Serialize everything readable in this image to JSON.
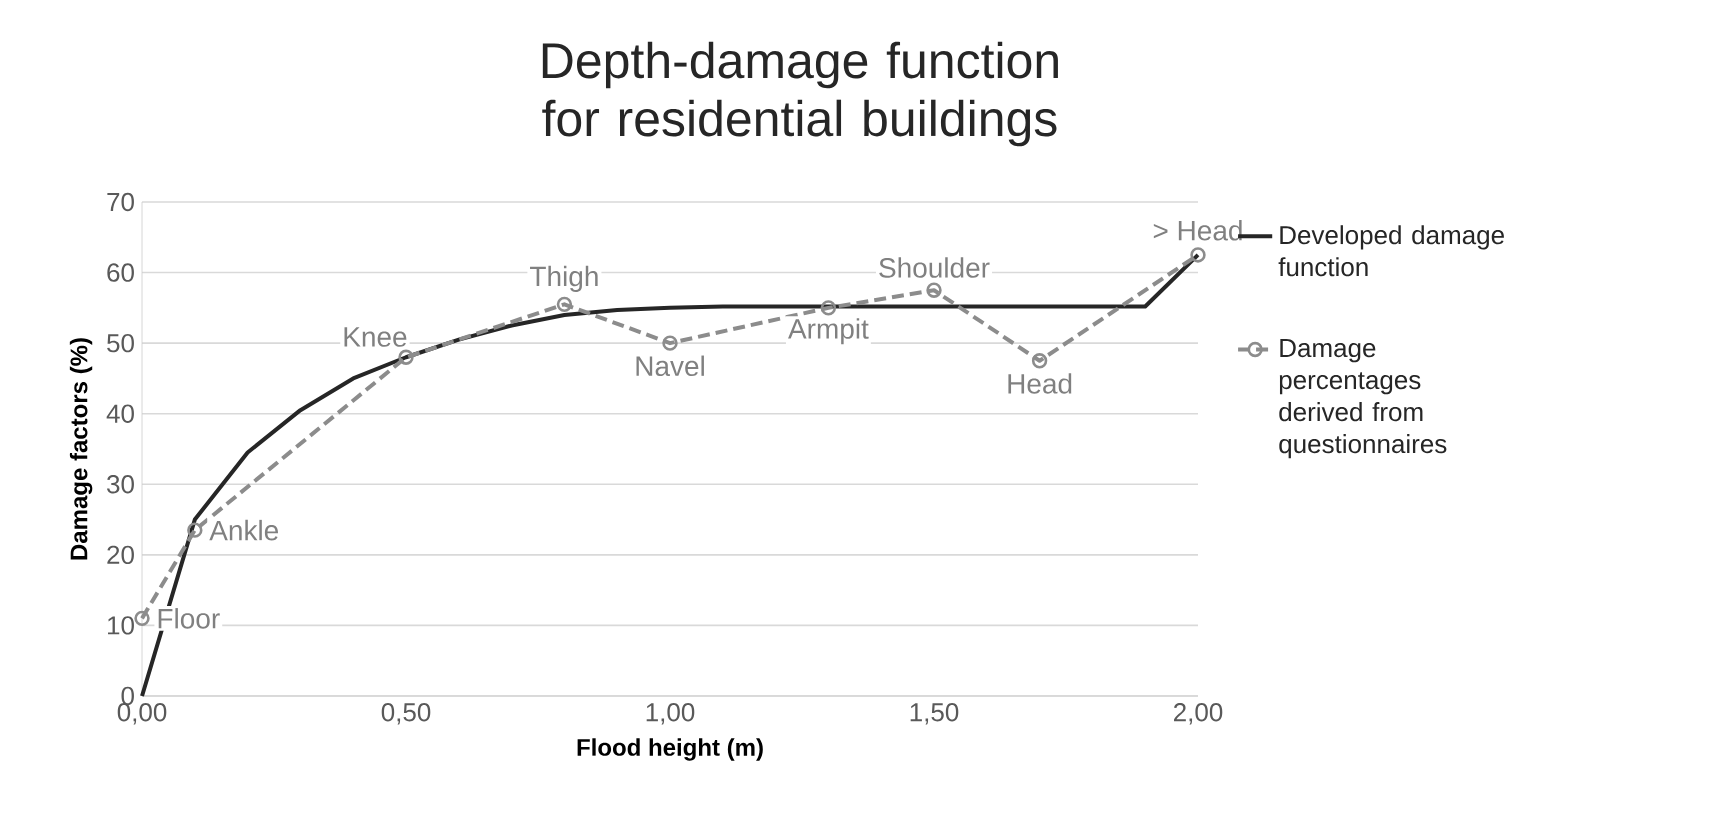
{
  "chart_data": {
    "type": "line",
    "title": "Depth-damage function for residential buildings",
    "xlabel": "Flood height (m)",
    "ylabel": "Damage factors (%)",
    "xlim": [
      0,
      2
    ],
    "xticks": [
      {
        "value": 0,
        "label": "0,00"
      },
      {
        "value": 0.5,
        "label": "0,50"
      },
      {
        "value": 1,
        "label": "1,00"
      },
      {
        "value": 1.5,
        "label": "1,50"
      },
      {
        "value": 2,
        "label": "2,00"
      }
    ],
    "ylim": [
      0,
      70
    ],
    "yticks": [
      0,
      10,
      20,
      30,
      40,
      50,
      60,
      70
    ],
    "grid": "y",
    "legend": "right",
    "series": [
      {
        "name": "Developed damage function",
        "color": "#262626",
        "marker": "none",
        "line_style": "solid",
        "x": [
          0,
          0.1,
          0.2,
          0.3,
          0.4,
          0.5,
          0.6,
          0.7,
          0.8,
          0.9,
          1.0,
          1.1,
          1.9,
          2.0
        ],
        "values": [
          0,
          25,
          34.5,
          40.5,
          45,
          48,
          50.5,
          52.5,
          54,
          54.7,
          55,
          55.2,
          55.2,
          62.5
        ]
      },
      {
        "name": "Damage percentages derived from questionnaires",
        "color": "#8c8c8c",
        "marker": "circle",
        "line_style": "dashed",
        "x": [
          0,
          0.1,
          0.5,
          0.8,
          1.0,
          1.3,
          1.5,
          1.7,
          2.0
        ],
        "values": [
          11,
          23.5,
          48,
          55.5,
          50,
          55,
          57.5,
          47.5,
          62.5
        ]
      }
    ],
    "annotations": [
      {
        "text": "Floor",
        "x": 0,
        "y": 11
      },
      {
        "text": "Ankle",
        "x": 0.1,
        "y": 23.5
      },
      {
        "text": "Knee",
        "x": 0.5,
        "y": 48
      },
      {
        "text": "Thigh",
        "x": 0.8,
        "y": 55.5
      },
      {
        "text": "Navel",
        "x": 1.0,
        "y": 50
      },
      {
        "text": "Armpit",
        "x": 1.3,
        "y": 55
      },
      {
        "text": "Shoulder",
        "x": 1.5,
        "y": 57.5
      },
      {
        "text": "Head",
        "x": 1.7,
        "y": 47.5
      },
      {
        "text": "> Head",
        "x": 2.0,
        "y": 62.5
      }
    ]
  }
}
